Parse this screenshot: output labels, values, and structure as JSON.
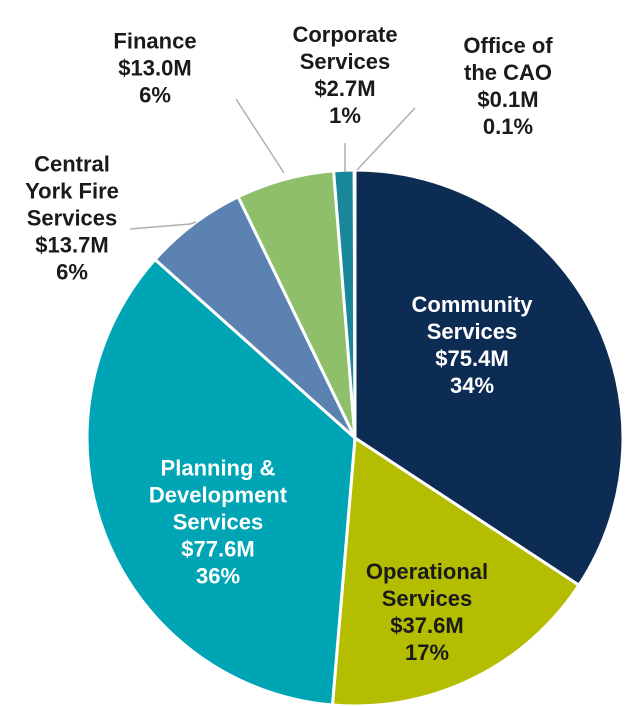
{
  "chart_data": {
    "type": "pie",
    "categories": [
      "Community Services",
      "Operational Services",
      "Planning & Development Services",
      "Central York Fire Services",
      "Finance",
      "Corporate Services",
      "Office of the CAO"
    ],
    "values": [
      75.4,
      37.6,
      77.6,
      13.7,
      13.0,
      2.7,
      0.1
    ],
    "value_labels": [
      "$75.4M",
      "$37.6M",
      "$77.6M",
      "$13.7M",
      "$13.0M",
      "$2.7M",
      "$0.1M"
    ],
    "percent_labels": [
      "34%",
      "17%",
      "36%",
      "6%",
      "6%",
      "1%",
      "0.1%"
    ],
    "colors": [
      "#0d2c54",
      "#b5bd00",
      "#00a5b5",
      "#5b82b0",
      "#8fbf6b",
      "#19879a",
      "#2a5fa0"
    ]
  }
}
